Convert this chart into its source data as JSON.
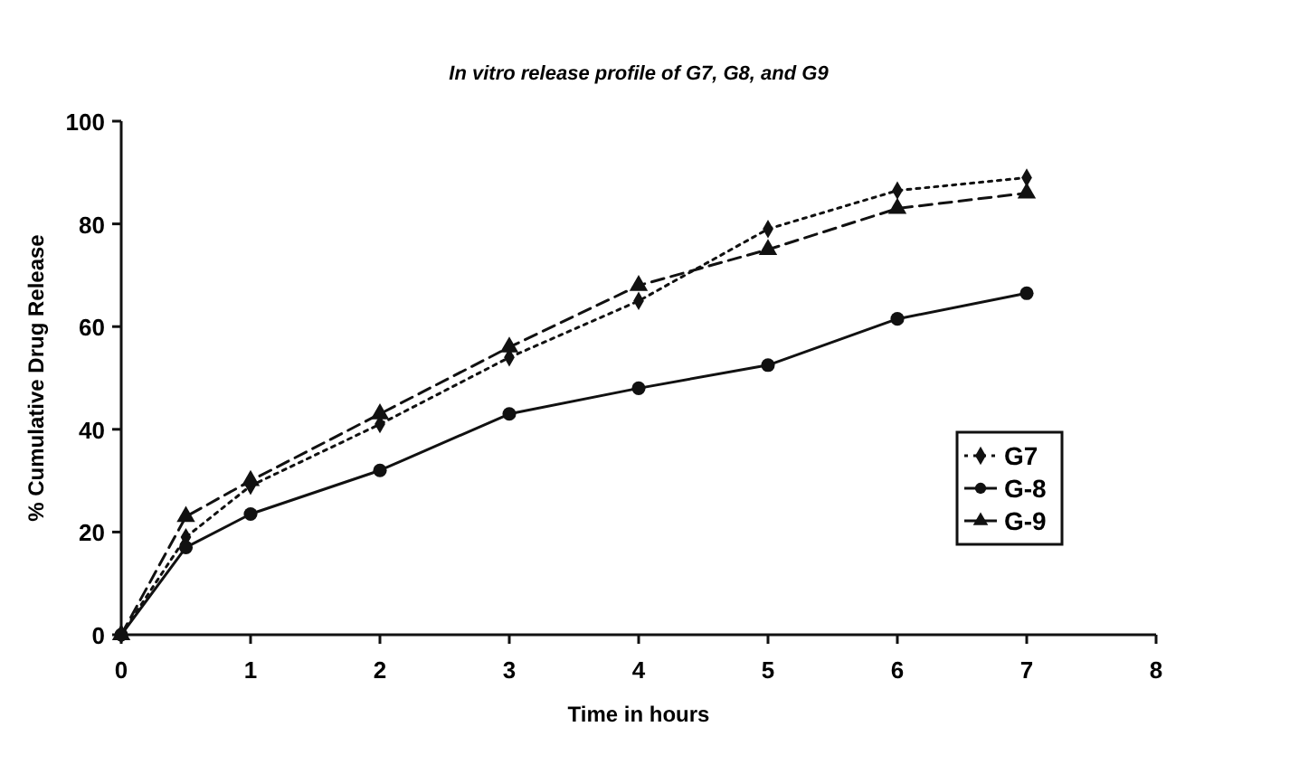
{
  "chart_data": {
    "type": "line",
    "title": "In vitro release profile of G7, G8, and G9",
    "xlabel": "Time in hours",
    "ylabel": "% Cumulative Drug Release",
    "x": [
      0,
      0.5,
      1,
      2,
      3,
      4,
      5,
      6,
      7
    ],
    "series": [
      {
        "name": "G7",
        "color": "#111111",
        "marker": "diamond",
        "line_style": "dotted",
        "values": [
          0,
          19,
          29,
          41,
          54,
          65,
          79,
          86.5,
          89
        ]
      },
      {
        "name": "G-8",
        "color": "#111111",
        "marker": "circle",
        "line_style": "solid",
        "values": [
          0,
          17,
          23.5,
          32,
          43,
          48,
          52.5,
          61.5,
          66.5
        ]
      },
      {
        "name": "G-9",
        "color": "#111111",
        "marker": "triangle",
        "line_style": "dashed",
        "values": [
          0,
          23,
          30,
          43,
          56,
          68,
          75,
          83,
          86
        ]
      }
    ],
    "xlim": [
      0,
      8
    ],
    "xticks": [
      0,
      1,
      2,
      3,
      4,
      5,
      6,
      7,
      8
    ],
    "ylim": [
      0,
      100
    ],
    "yticks": [
      0,
      20,
      40,
      60,
      80,
      100
    ],
    "grid": false,
    "legend": "bottom right"
  }
}
